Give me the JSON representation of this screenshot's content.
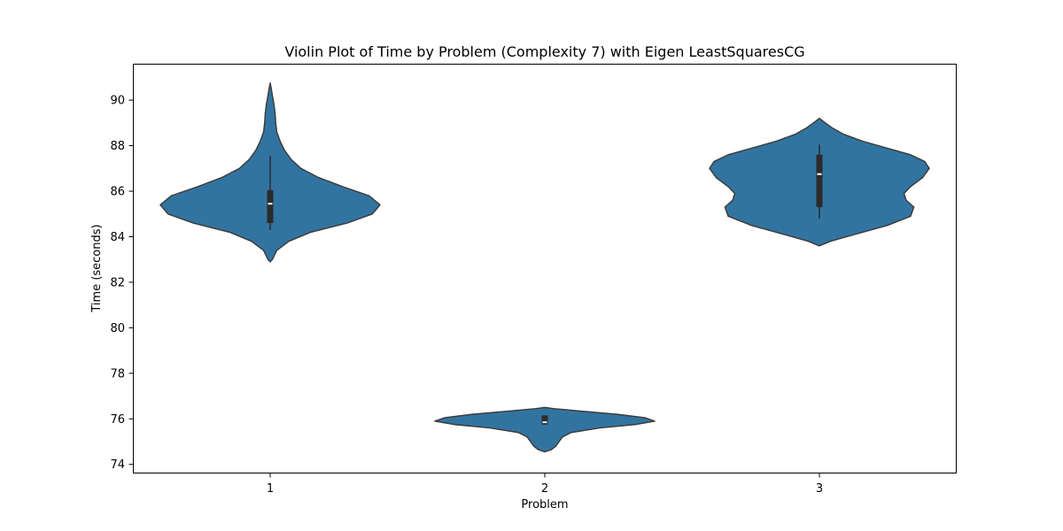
{
  "chart_data": {
    "type": "violin",
    "title": "Violin Plot of Time by Problem (Complexity 7) with Eigen LeastSquaresCG",
    "xlabel": "Problem",
    "ylabel": "Time (seconds)",
    "categories": [
      "1",
      "2",
      "3"
    ],
    "ylim": [
      73.6,
      91.6
    ],
    "yticks": [
      74,
      76,
      78,
      80,
      82,
      84,
      86,
      88,
      90
    ],
    "grid": false,
    "legend": "none",
    "colors": {
      "fill": "#3274a1",
      "edge": "#3d3d3d",
      "box": "#2b2b2b",
      "median": "#ffffff"
    },
    "violins": [
      {
        "category": "1",
        "min": 84.3,
        "q1": 84.6,
        "median": 85.45,
        "q3": 86.05,
        "max": 87.55,
        "density": [
          [
            82.9,
            0.0
          ],
          [
            83.0,
            0.02
          ],
          [
            83.4,
            0.06
          ],
          [
            83.8,
            0.17
          ],
          [
            84.2,
            0.37
          ],
          [
            84.6,
            0.7
          ],
          [
            85.0,
            0.93
          ],
          [
            85.4,
            1.0
          ],
          [
            85.8,
            0.9
          ],
          [
            86.2,
            0.66
          ],
          [
            86.6,
            0.44
          ],
          [
            87.0,
            0.28
          ],
          [
            87.4,
            0.19
          ],
          [
            87.8,
            0.13
          ],
          [
            88.2,
            0.09
          ],
          [
            88.6,
            0.06
          ],
          [
            89.0,
            0.05
          ],
          [
            89.4,
            0.045
          ],
          [
            89.8,
            0.035
          ],
          [
            90.2,
            0.02
          ],
          [
            90.5,
            0.01
          ],
          [
            90.75,
            0.0
          ]
        ]
      },
      {
        "category": "2",
        "min": 75.75,
        "q1": 75.75,
        "median": 75.85,
        "q3": 76.15,
        "max": 76.15,
        "density": [
          [
            74.55,
            0.0
          ],
          [
            74.65,
            0.06
          ],
          [
            74.8,
            0.1
          ],
          [
            75.0,
            0.13
          ],
          [
            75.2,
            0.16
          ],
          [
            75.4,
            0.24
          ],
          [
            75.6,
            0.5
          ],
          [
            75.75,
            0.82
          ],
          [
            75.9,
            1.0
          ],
          [
            76.05,
            0.91
          ],
          [
            76.2,
            0.66
          ],
          [
            76.35,
            0.3
          ],
          [
            76.45,
            0.08
          ],
          [
            76.5,
            0.0
          ]
        ]
      },
      {
        "category": "3",
        "min": 84.8,
        "q1": 85.3,
        "median": 86.75,
        "q3": 87.6,
        "max": 88.05,
        "density": [
          [
            83.6,
            0.0
          ],
          [
            83.8,
            0.1
          ],
          [
            84.1,
            0.32
          ],
          [
            84.5,
            0.62
          ],
          [
            84.9,
            0.83
          ],
          [
            85.3,
            0.86
          ],
          [
            85.6,
            0.79
          ],
          [
            85.9,
            0.77
          ],
          [
            86.2,
            0.83
          ],
          [
            86.6,
            0.94
          ],
          [
            87.0,
            1.0
          ],
          [
            87.3,
            0.96
          ],
          [
            87.6,
            0.83
          ],
          [
            87.9,
            0.61
          ],
          [
            88.2,
            0.39
          ],
          [
            88.5,
            0.22
          ],
          [
            88.8,
            0.11
          ],
          [
            89.05,
            0.04
          ],
          [
            89.2,
            0.0
          ]
        ]
      }
    ]
  }
}
